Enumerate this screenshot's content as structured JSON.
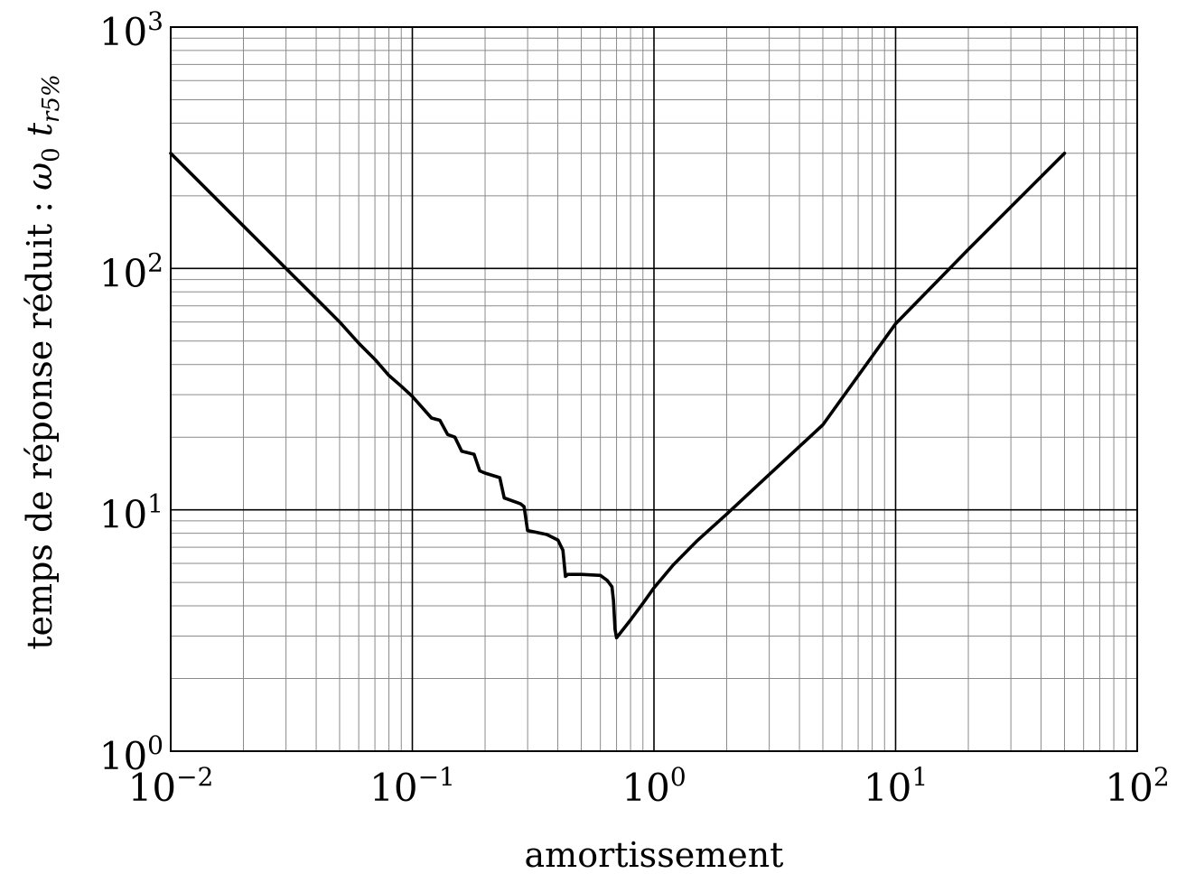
{
  "chart_data": {
    "type": "line",
    "xlabel": "amortissement",
    "ylabel": {
      "prefix": "temps de réponse réduit : ",
      "omega": "ω",
      "omega_sub": "0",
      "t": "t",
      "t_sub": "r5%"
    },
    "x_scale": "log",
    "y_scale": "log",
    "xlim": [
      0.01,
      100
    ],
    "ylim": [
      1,
      1000
    ],
    "x_ticks": [
      {
        "base": "10",
        "exp": "−2",
        "value": 0.01
      },
      {
        "base": "10",
        "exp": "−1",
        "value": 0.1
      },
      {
        "base": "10",
        "exp": "0",
        "value": 1
      },
      {
        "base": "10",
        "exp": "1",
        "value": 10
      },
      {
        "base": "10",
        "exp": "2",
        "value": 100
      }
    ],
    "y_ticks": [
      {
        "base": "10",
        "exp": "0",
        "value": 1
      },
      {
        "base": "10",
        "exp": "1",
        "value": 10
      },
      {
        "base": "10",
        "exp": "2",
        "value": 100
      },
      {
        "base": "10",
        "exp": "3",
        "value": 1000
      }
    ],
    "grid": "major and minor",
    "series": [
      {
        "color": "#000000",
        "x": [
          0.01,
          0.02,
          0.03,
          0.04,
          0.05,
          0.06,
          0.07,
          0.08,
          0.09,
          0.1,
          0.12,
          0.13,
          0.14,
          0.15,
          0.16,
          0.18,
          0.19,
          0.2,
          0.23,
          0.24,
          0.28,
          0.29,
          0.3,
          0.32,
          0.36,
          0.4,
          0.42,
          0.43,
          0.44,
          0.46,
          0.5,
          0.6,
          0.64,
          0.67,
          0.68,
          0.69,
          0.7,
          0.8,
          0.9,
          1.0,
          1.2,
          1.5,
          2.0,
          3.0,
          5.0,
          10,
          20,
          50
        ],
        "y": [
          300,
          150,
          100,
          75,
          60,
          49,
          42,
          36,
          32.5,
          29.5,
          24,
          23.5,
          20.5,
          20.0,
          17.5,
          17.0,
          14.5,
          14.2,
          13.6,
          11.2,
          10.6,
          10.3,
          8.2,
          8.1,
          7.9,
          7.5,
          6.8,
          5.3,
          5.4,
          5.4,
          5.4,
          5.35,
          5.1,
          4.8,
          4.2,
          3.2,
          2.95,
          3.5,
          4.1,
          4.75,
          5.9,
          7.4,
          9.6,
          14.0,
          22.5,
          59,
          120,
          300
        ]
      }
    ]
  }
}
